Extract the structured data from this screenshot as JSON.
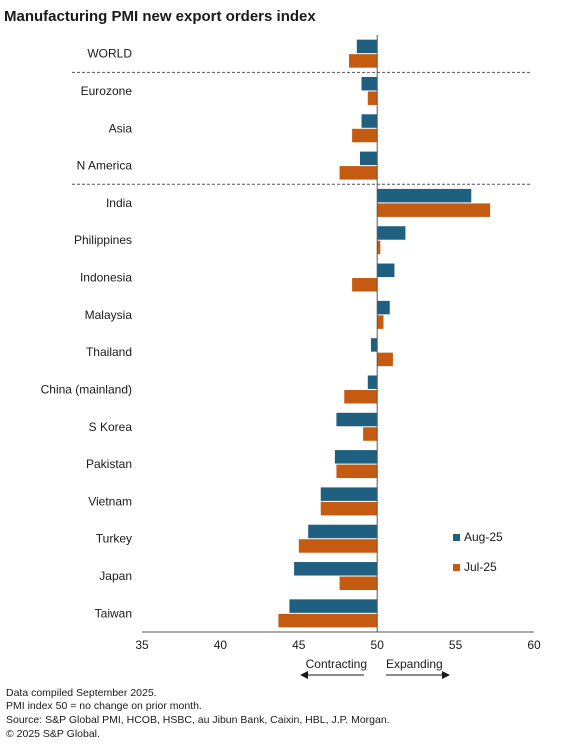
{
  "chart_data": {
    "type": "bar",
    "orientation": "horizontal",
    "title": "Manufacturing PMI new export orders index",
    "categories": [
      "WORLD",
      "Eurozone",
      "Asia",
      "N America",
      "India",
      "Philippines",
      "Indonesia",
      "Malaysia",
      "Thailand",
      "China (mainland)",
      "S Korea",
      "Pakistan",
      "Vietnam",
      "Turkey",
      "Japan",
      "Taiwan"
    ],
    "series": [
      {
        "name": "Aug-25",
        "color": "#1f5f7f",
        "values": [
          48.7,
          49.0,
          49.0,
          48.9,
          56.0,
          51.8,
          51.1,
          50.8,
          49.6,
          49.4,
          47.4,
          47.3,
          46.4,
          45.6,
          44.7,
          44.4
        ]
      },
      {
        "name": "Jul-25",
        "color": "#c55a11",
        "values": [
          48.2,
          49.4,
          48.4,
          47.6,
          57.2,
          50.2,
          48.4,
          50.4,
          51.0,
          47.9,
          49.1,
          47.4,
          46.4,
          45.0,
          47.6,
          43.7
        ]
      }
    ],
    "xlim": [
      35,
      60
    ],
    "xticks": [
      35,
      40,
      45,
      50,
      55,
      60
    ],
    "baseline": 50,
    "group_separators_after": [
      "WORLD",
      "N America"
    ],
    "legend_position": "right",
    "direction_labels": {
      "left": "Contracting",
      "right": "Expanding"
    }
  },
  "footnotes": [
    "Data compiled September 2025.",
    "PMI index 50 = no change on prior month.",
    "Source: S&P Global PMI, HCOB, HSBC, au Jibun Bank, Caixin, HBL, J.P. Morgan.",
    "© 2025 S&P Global."
  ]
}
